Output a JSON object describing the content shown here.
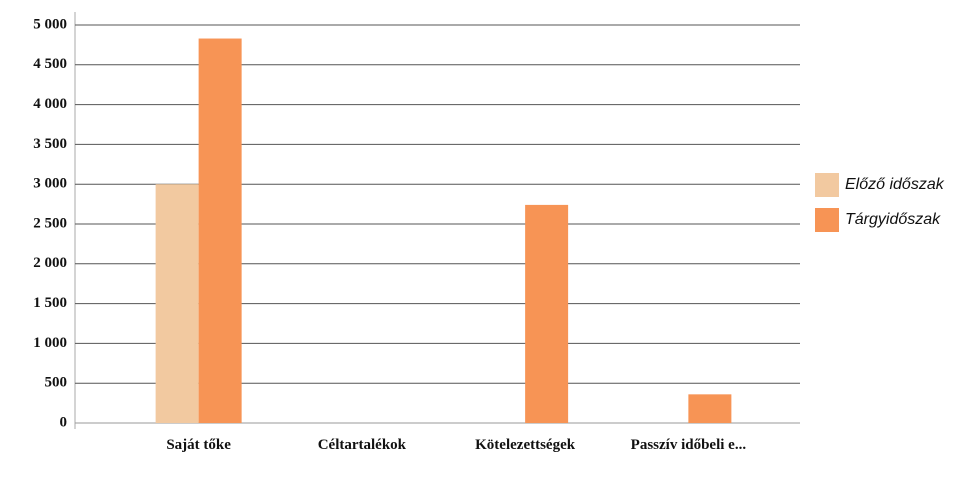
{
  "chart_data": {
    "type": "bar",
    "categories": [
      "Saját tőke",
      "Céltartalékok",
      "Kötelezettségek",
      "Passzív időbeli e..."
    ],
    "series": [
      {
        "name": "Előző időszak",
        "color": "#f2c9a0",
        "values": [
          3000,
          0,
          0,
          0
        ]
      },
      {
        "name": "Tárgyidőszak",
        "color": "#f79455",
        "values": [
          4830,
          0,
          2740,
          360
        ]
      }
    ],
    "ylim": [
      0,
      5000
    ],
    "yticks": [
      0,
      500,
      {
        "value": 1000,
        "label": "1 000"
      },
      {
        "value": 1500,
        "label": "1 500"
      },
      {
        "value": 2000,
        "label": "2 000"
      },
      {
        "value": 2500,
        "label": "2 500"
      },
      {
        "value": 3000,
        "label": "3 000"
      },
      {
        "value": 3500,
        "label": "3 500"
      },
      {
        "value": 4000,
        "label": "4 000"
      },
      {
        "value": 4500,
        "label": "4 500"
      },
      {
        "value": 5000,
        "label": "5 000"
      }
    ],
    "grid": true,
    "legend": "right"
  }
}
